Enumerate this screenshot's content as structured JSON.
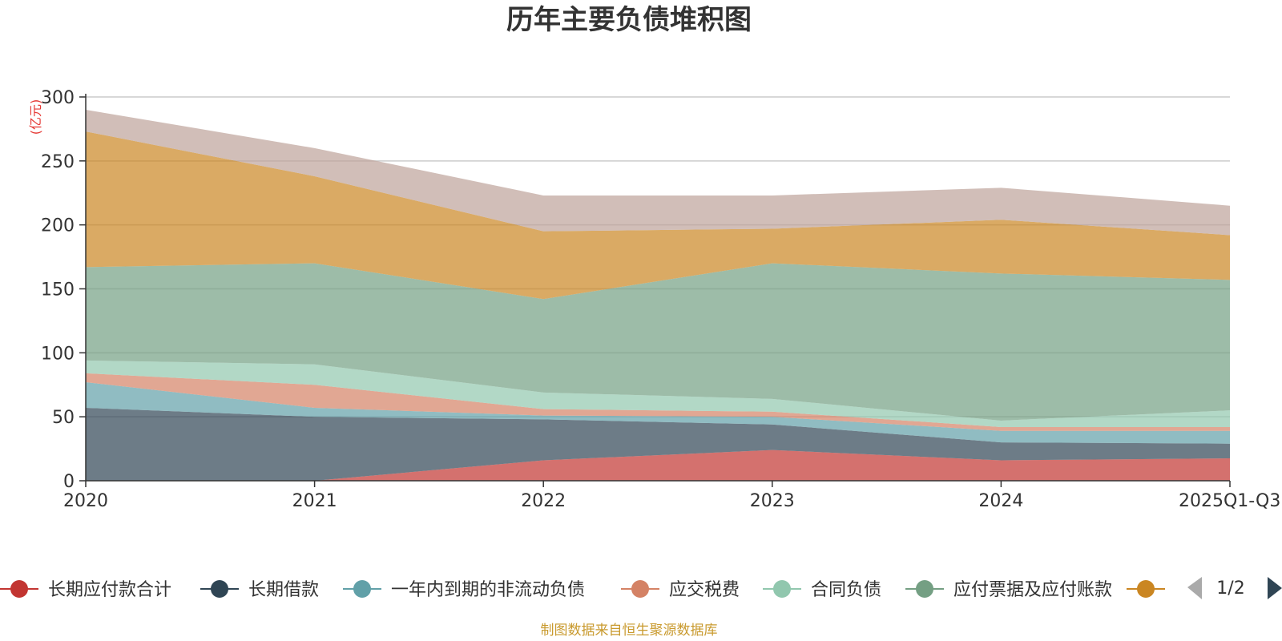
{
  "title": "历年主要负债堆积图",
  "footer": "制图数据来自恒生聚源数据库",
  "legend_pager": "1/2",
  "colors": {
    "长期应付款合计": "#c23531",
    "长期借款": "#2f4554",
    "一年内到期的非流动负债": "#61a0a8",
    "应交税费": "#d48265",
    "合同负债": "#91c7ae",
    "应付票据及应付账款": "#749f83",
    "series7": "#ca8622",
    "series8": "#bda29a"
  },
  "chart_data": {
    "type": "area",
    "stacked": true,
    "title": "历年主要负债堆积图",
    "ylabel": "(亿元)",
    "xlabel": "",
    "categories": [
      "2020",
      "2021",
      "2022",
      "2023",
      "2024",
      "2025Q1-Q3"
    ],
    "ylim": [
      0,
      300
    ],
    "yticks": [
      0,
      50,
      100,
      150,
      200,
      250,
      300
    ],
    "grid": true,
    "legend_position": "bottom",
    "series": [
      {
        "name": "长期应付款合计",
        "color": "#c23531",
        "values": [
          0,
          0,
          16,
          24,
          16,
          17.5
        ]
      },
      {
        "name": "长期借款",
        "color": "#2f4554",
        "values": [
          57,
          50,
          32,
          20,
          14,
          11.5
        ]
      },
      {
        "name": "一年内到期的非流动负债",
        "color": "#61a0a8",
        "values": [
          20,
          7,
          3,
          6,
          9,
          10
        ]
      },
      {
        "name": "应交税费",
        "color": "#d48265",
        "values": [
          7,
          18,
          5,
          4,
          3,
          3
        ]
      },
      {
        "name": "合同负债",
        "color": "#91c7ae",
        "values": [
          10,
          16,
          13,
          10,
          5,
          13
        ]
      },
      {
        "name": "应付票据及应付账款",
        "color": "#749f83",
        "values": [
          73,
          79,
          73,
          106,
          115,
          102
        ]
      },
      {
        "name": "",
        "color": "#ca8622",
        "values": [
          106,
          68,
          53,
          27,
          42,
          35
        ]
      },
      {
        "name": "",
        "color": "#bda29a",
        "values": [
          17,
          22,
          28,
          26,
          25,
          23
        ]
      }
    ]
  }
}
